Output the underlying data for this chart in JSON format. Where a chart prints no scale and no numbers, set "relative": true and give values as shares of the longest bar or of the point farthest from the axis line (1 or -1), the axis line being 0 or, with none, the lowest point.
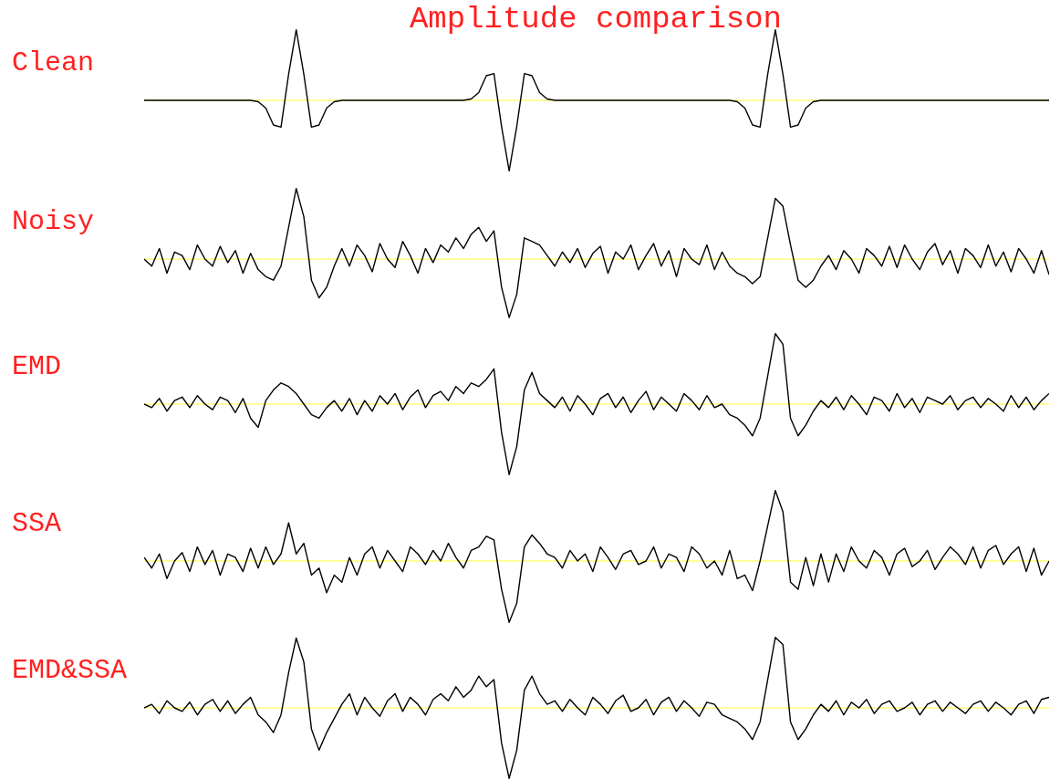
{
  "chart_data": [
    {
      "type": "line",
      "title": "Amplitude comparison",
      "relative": true,
      "categories": [
        null,
        null,
        null,
        null,
        null,
        null,
        null,
        null,
        null,
        null,
        null,
        null,
        null,
        null,
        null,
        null,
        null,
        null,
        null,
        null,
        null,
        null,
        null,
        null,
        null,
        null,
        null,
        null,
        null,
        null,
        null,
        null,
        null,
        null,
        null,
        null,
        null,
        null,
        null,
        null,
        null,
        null,
        null,
        null,
        null,
        null,
        null,
        null,
        null,
        null,
        null,
        null,
        null,
        null,
        null,
        null,
        null,
        null,
        null,
        null,
        null,
        null,
        null,
        null,
        null,
        null,
        null,
        null,
        null,
        null,
        null,
        null,
        null,
        null,
        null,
        null,
        null,
        null,
        null,
        null,
        null,
        null,
        null,
        null,
        null,
        null,
        null,
        null,
        null,
        null,
        null,
        null,
        null,
        null,
        null,
        null,
        null,
        null,
        null,
        null,
        null,
        null,
        null,
        null,
        null,
        null,
        null,
        null,
        null,
        null,
        null,
        null,
        null,
        null,
        null,
        null,
        null,
        null,
        null,
        null
      ],
      "series": [
        {
          "name": "Clean",
          "color": "#000000",
          "values": [
            0,
            0,
            0,
            0,
            0,
            0,
            0,
            0,
            0,
            0,
            0,
            0,
            0,
            0,
            0,
            -0.02,
            -0.11,
            -0.35,
            -0.38,
            0.37,
            1,
            0.37,
            -0.38,
            -0.35,
            -0.11,
            -0.02,
            0,
            0,
            0,
            0,
            0,
            0,
            0,
            0,
            0,
            0,
            0,
            0,
            0,
            0,
            0,
            0,
            0,
            0.02,
            0.11,
            0.35,
            0.38,
            -0.37,
            -1,
            -0.37,
            0.38,
            0.35,
            0.11,
            0.02,
            0,
            0,
            0,
            0,
            0,
            0,
            0,
            0,
            0,
            0,
            0,
            0,
            0,
            0,
            0,
            0,
            0,
            0,
            0,
            0,
            0,
            0,
            0,
            0,
            -0.02,
            -0.11,
            -0.35,
            -0.38,
            0.37,
            1,
            0.37,
            -0.38,
            -0.35,
            -0.11,
            -0.02,
            0,
            0,
            0,
            0,
            0,
            0,
            0,
            0,
            0,
            0,
            0,
            0,
            0,
            0,
            0,
            0,
            0,
            0,
            0,
            0,
            0,
            0,
            0,
            0,
            0,
            0,
            0,
            0,
            0,
            0,
            0
          ]
        }
      ],
      "ref_lines": [
        {
          "axis": "y",
          "value": 0,
          "color": "#ffff00"
        }
      ]
    },
    {
      "type": "line",
      "relative": true,
      "categories": [
        null,
        null,
        null,
        null,
        null,
        null,
        null,
        null,
        null,
        null,
        null,
        null,
        null,
        null,
        null,
        null,
        null,
        null,
        null,
        null,
        null,
        null,
        null,
        null,
        null,
        null,
        null,
        null,
        null,
        null,
        null,
        null,
        null,
        null,
        null,
        null,
        null,
        null,
        null,
        null,
        null,
        null,
        null,
        null,
        null,
        null,
        null,
        null,
        null,
        null,
        null,
        null,
        null,
        null,
        null,
        null,
        null,
        null,
        null,
        null,
        null,
        null,
        null,
        null,
        null,
        null,
        null,
        null,
        null,
        null,
        null,
        null,
        null,
        null,
        null,
        null,
        null,
        null,
        null,
        null,
        null,
        null,
        null,
        null,
        null,
        null,
        null,
        null,
        null,
        null,
        null,
        null,
        null,
        null,
        null,
        null,
        null,
        null,
        null,
        null,
        null,
        null,
        null,
        null,
        null,
        null,
        null,
        null,
        null,
        null,
        null,
        null,
        null,
        null,
        null,
        null,
        null,
        null,
        null,
        null
      ],
      "series": [
        {
          "name": "Noisy",
          "color": "#000000",
          "values": [
            0.0,
            -0.1,
            0.15,
            -0.2,
            0.1,
            0.05,
            -0.15,
            0.2,
            0.0,
            -0.1,
            0.18,
            -0.05,
            0.12,
            -0.2,
            0.08,
            -0.15,
            -0.25,
            -0.3,
            -0.1,
            0.45,
            1.0,
            0.6,
            -0.3,
            -0.55,
            -0.4,
            -0.1,
            0.15,
            -0.1,
            0.2,
            0.05,
            -0.18,
            0.22,
            0.0,
            -0.12,
            0.25,
            0.05,
            -0.2,
            0.15,
            -0.05,
            0.2,
            0.1,
            0.3,
            0.15,
            0.35,
            0.45,
            0.25,
            0.4,
            -0.4,
            -0.83,
            -0.5,
            0.3,
            0.25,
            0.2,
            0.05,
            -0.1,
            0.1,
            -0.05,
            0.15,
            -0.12,
            0.08,
            0.18,
            -0.2,
            0.1,
            0.0,
            0.2,
            -0.15,
            0.05,
            0.22,
            -0.1,
            0.12,
            -0.25,
            0.15,
            0.0,
            -0.08,
            0.2,
            -0.15,
            0.1,
            -0.1,
            -0.2,
            -0.25,
            -0.35,
            -0.25,
            0.3,
            0.86,
            0.75,
            0.2,
            -0.3,
            -0.4,
            -0.3,
            -0.1,
            0.05,
            -0.15,
            0.12,
            0.0,
            -0.2,
            0.15,
            0.05,
            -0.1,
            0.18,
            -0.12,
            0.2,
            0.0,
            -0.15,
            0.1,
            0.22,
            -0.08,
            0.12,
            -0.2,
            0.15,
            0.05,
            -0.12,
            0.2,
            -0.1,
            0.1,
            -0.18,
            0.15,
            0.0,
            -0.2,
            0.12,
            -0.22
          ]
        }
      ],
      "ref_lines": [
        {
          "axis": "y",
          "value": 0,
          "color": "#ffff00"
        }
      ]
    },
    {
      "type": "line",
      "relative": true,
      "categories": [
        null,
        null,
        null,
        null,
        null,
        null,
        null,
        null,
        null,
        null,
        null,
        null,
        null,
        null,
        null,
        null,
        null,
        null,
        null,
        null,
        null,
        null,
        null,
        null,
        null,
        null,
        null,
        null,
        null,
        null,
        null,
        null,
        null,
        null,
        null,
        null,
        null,
        null,
        null,
        null,
        null,
        null,
        null,
        null,
        null,
        null,
        null,
        null,
        null,
        null,
        null,
        null,
        null,
        null,
        null,
        null,
        null,
        null,
        null,
        null,
        null,
        null,
        null,
        null,
        null,
        null,
        null,
        null,
        null,
        null,
        null,
        null,
        null,
        null,
        null,
        null,
        null,
        null,
        null,
        null,
        null,
        null,
        null,
        null,
        null,
        null,
        null,
        null,
        null,
        null,
        null,
        null,
        null,
        null,
        null,
        null,
        null,
        null,
        null,
        null,
        null,
        null,
        null,
        null,
        null,
        null,
        null,
        null,
        null,
        null,
        null,
        null,
        null,
        null,
        null,
        null,
        null,
        null,
        null,
        null
      ],
      "series": [
        {
          "name": "EMD",
          "color": "#000000",
          "values": [
            0.0,
            -0.05,
            0.08,
            -0.1,
            0.05,
            0.1,
            -0.05,
            0.12,
            0.0,
            -0.08,
            0.1,
            0.05,
            -0.12,
            0.08,
            -0.2,
            -0.33,
            0.05,
            0.2,
            0.3,
            0.25,
            0.15,
            0.0,
            -0.15,
            -0.2,
            -0.05,
            0.05,
            -0.1,
            0.08,
            -0.15,
            0.05,
            -0.1,
            0.12,
            0.0,
            0.15,
            -0.08,
            0.1,
            0.2,
            -0.05,
            0.12,
            0.18,
            0.05,
            0.25,
            0.15,
            0.3,
            0.25,
            0.35,
            0.5,
            -0.4,
            -1.0,
            -0.6,
            0.2,
            0.45,
            0.15,
            0.05,
            -0.05,
            0.1,
            -0.1,
            0.12,
            0.0,
            -0.15,
            0.08,
            0.15,
            -0.05,
            0.1,
            -0.12,
            0.05,
            0.18,
            -0.08,
            0.1,
            0.0,
            -0.1,
            0.15,
            0.05,
            -0.08,
            0.12,
            -0.05,
            0.0,
            -0.15,
            -0.2,
            -0.3,
            -0.45,
            -0.2,
            0.4,
            1.0,
            0.85,
            -0.2,
            -0.45,
            -0.3,
            -0.1,
            0.05,
            -0.05,
            0.1,
            -0.08,
            0.12,
            0.0,
            -0.15,
            0.1,
            0.05,
            -0.1,
            0.15,
            -0.05,
            0.08,
            -0.12,
            0.1,
            0.05,
            0.0,
            0.12,
            -0.08,
            0.05,
            0.1,
            -0.05,
            0.08,
            0.0,
            -0.1,
            0.12,
            -0.05,
            0.1,
            -0.08,
            0.05,
            0.15
          ]
        }
      ],
      "ref_lines": [
        {
          "axis": "y",
          "value": 0,
          "color": "#ffff00"
        }
      ]
    },
    {
      "type": "line",
      "relative": true,
      "categories": [
        null,
        null,
        null,
        null,
        null,
        null,
        null,
        null,
        null,
        null,
        null,
        null,
        null,
        null,
        null,
        null,
        null,
        null,
        null,
        null,
        null,
        null,
        null,
        null,
        null,
        null,
        null,
        null,
        null,
        null,
        null,
        null,
        null,
        null,
        null,
        null,
        null,
        null,
        null,
        null,
        null,
        null,
        null,
        null,
        null,
        null,
        null,
        null,
        null,
        null,
        null,
        null,
        null,
        null,
        null,
        null,
        null,
        null,
        null,
        null,
        null,
        null,
        null,
        null,
        null,
        null,
        null,
        null,
        null,
        null,
        null,
        null,
        null,
        null,
        null,
        null,
        null,
        null,
        null,
        null,
        null,
        null,
        null,
        null,
        null,
        null,
        null,
        null,
        null,
        null,
        null,
        null,
        null,
        null,
        null,
        null,
        null,
        null,
        null,
        null,
        null,
        null,
        null,
        null,
        null,
        null,
        null,
        null,
        null,
        null,
        null,
        null,
        null,
        null,
        null,
        null,
        null,
        null,
        null,
        null
      ],
      "series": [
        {
          "name": "SSA",
          "color": "#000000",
          "values": [
            0.05,
            -0.1,
            0.1,
            -0.25,
            0.0,
            0.12,
            -0.15,
            0.2,
            -0.05,
            0.15,
            -0.2,
            0.1,
            0.05,
            -0.15,
            0.18,
            -0.1,
            0.2,
            -0.05,
            0.1,
            0.54,
            0.1,
            0.25,
            -0.2,
            -0.1,
            -0.45,
            -0.2,
            -0.3,
            0.05,
            -0.2,
            0.1,
            0.2,
            -0.1,
            0.15,
            0.0,
            -0.15,
            0.2,
            0.1,
            -0.05,
            0.15,
            0.0,
            0.25,
            0.05,
            -0.1,
            0.15,
            0.2,
            0.35,
            0.3,
            -0.4,
            -0.87,
            -0.6,
            0.2,
            0.37,
            0.25,
            0.1,
            0.05,
            -0.1,
            0.15,
            0.0,
            0.1,
            -0.15,
            0.2,
            0.05,
            -0.12,
            0.1,
            0.15,
            -0.05,
            0.0,
            0.2,
            -0.1,
            0.1,
            0.05,
            -0.15,
            0.2,
            0.1,
            -0.1,
            0.0,
            -0.2,
            0.15,
            -0.25,
            -0.2,
            -0.42,
            0.0,
            0.5,
            1.0,
            0.7,
            -0.3,
            -0.4,
            0.05,
            -0.35,
            0.1,
            -0.3,
            0.1,
            -0.15,
            0.2,
            0.0,
            -0.1,
            0.15,
            0.05,
            -0.2,
            0.1,
            0.18,
            -0.08,
            0.0,
            0.15,
            -0.12,
            0.05,
            0.2,
            0.1,
            -0.05,
            0.2,
            -0.1,
            0.15,
            0.22,
            -0.05,
            0.1,
            0.2,
            -0.15,
            0.18,
            -0.2,
            0.0
          ]
        }
      ],
      "ref_lines": [
        {
          "axis": "y",
          "value": 0,
          "color": "#ffff00"
        }
      ]
    },
    {
      "type": "line",
      "relative": true,
      "categories": [
        null,
        null,
        null,
        null,
        null,
        null,
        null,
        null,
        null,
        null,
        null,
        null,
        null,
        null,
        null,
        null,
        null,
        null,
        null,
        null,
        null,
        null,
        null,
        null,
        null,
        null,
        null,
        null,
        null,
        null,
        null,
        null,
        null,
        null,
        null,
        null,
        null,
        null,
        null,
        null,
        null,
        null,
        null,
        null,
        null,
        null,
        null,
        null,
        null,
        null,
        null,
        null,
        null,
        null,
        null,
        null,
        null,
        null,
        null,
        null,
        null,
        null,
        null,
        null,
        null,
        null,
        null,
        null,
        null,
        null,
        null,
        null,
        null,
        null,
        null,
        null,
        null,
        null,
        null,
        null,
        null,
        null,
        null,
        null,
        null,
        null,
        null,
        null,
        null,
        null,
        null,
        null,
        null,
        null,
        null,
        null,
        null,
        null,
        null,
        null,
        null,
        null,
        null,
        null,
        null,
        null,
        null,
        null,
        null,
        null,
        null,
        null,
        null,
        null,
        null,
        null,
        null,
        null,
        null,
        null
      ],
      "series": [
        {
          "name": "EMD&SSA",
          "color": "#000000",
          "values": [
            0.0,
            0.05,
            -0.08,
            0.1,
            0.0,
            -0.05,
            0.08,
            -0.1,
            0.05,
            0.12,
            -0.05,
            0.1,
            -0.08,
            0.05,
            0.15,
            -0.1,
            -0.2,
            -0.35,
            -0.1,
            0.5,
            0.99,
            0.65,
            -0.3,
            -0.6,
            -0.35,
            -0.15,
            0.05,
            0.2,
            -0.1,
            0.15,
            0.0,
            -0.12,
            0.1,
            0.2,
            -0.05,
            0.15,
            0.05,
            -0.1,
            0.12,
            0.2,
            0.1,
            0.3,
            0.15,
            0.25,
            0.45,
            0.3,
            0.4,
            -0.5,
            -1.0,
            -0.6,
            0.25,
            0.45,
            0.2,
            0.05,
            0.1,
            -0.05,
            0.12,
            0.0,
            -0.1,
            0.15,
            0.05,
            -0.08,
            0.1,
            0.18,
            -0.05,
            0.0,
            0.12,
            -0.1,
            0.08,
            0.15,
            -0.05,
            0.1,
            0.0,
            -0.12,
            0.08,
            0.05,
            -0.1,
            -0.15,
            -0.2,
            -0.3,
            -0.45,
            -0.2,
            0.4,
            1.0,
            0.9,
            -0.2,
            -0.45,
            -0.3,
            -0.1,
            0.05,
            -0.05,
            0.1,
            -0.1,
            0.08,
            0.0,
            0.12,
            -0.08,
            0.05,
            0.1,
            -0.05,
            0.0,
            0.08,
            -0.1,
            0.05,
            0.1,
            -0.05,
            0.08,
            0.0,
            -0.08,
            0.05,
            0.1,
            -0.05,
            0.08,
            0.0,
            -0.1,
            0.05,
            0.1,
            -0.08,
            0.12,
            0.15
          ]
        }
      ],
      "ref_lines": [
        {
          "axis": "y",
          "value": 0,
          "color": "#ffff00"
        }
      ]
    }
  ]
}
